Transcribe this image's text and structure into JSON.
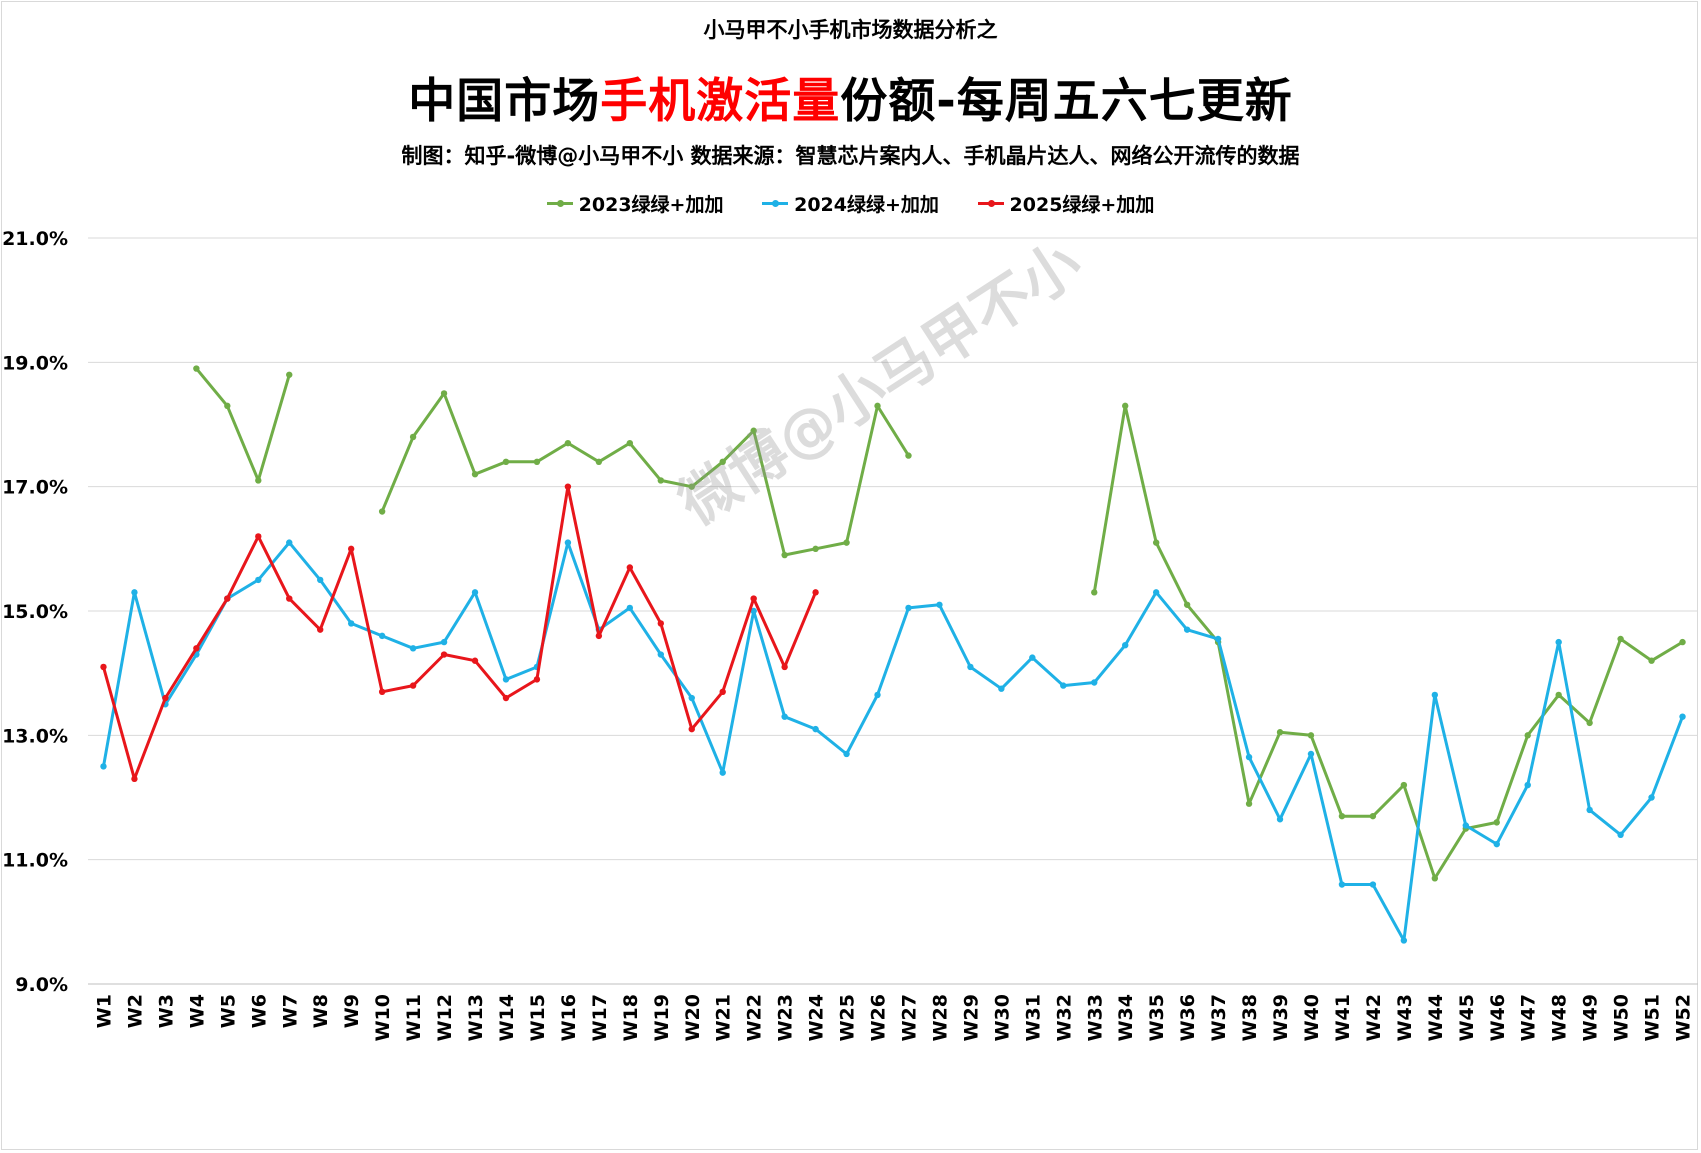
{
  "header": {
    "supertitle": "小马甲不小手机市场数据分析之",
    "title_part1": "中国市场",
    "title_highlight": "手机激活量",
    "title_part2": "份额-每周五六七更新",
    "subtitle": "制图：知乎-微博@小马甲不小    数据来源：智慧芯片案内人、手机晶片达人、网络公开流传的数据",
    "watermark": "微博@小马甲不小"
  },
  "colors": {
    "accent": "#ff0000",
    "s2023": "#70ad47",
    "s2024": "#1fb1e6",
    "s2025": "#e8161b",
    "grid": "#d9d9d9"
  },
  "chart_data": {
    "type": "line",
    "title": "中国市场手机激活量份额-每周五六七更新",
    "ylim": [
      9.0,
      21.0
    ],
    "yticks": [
      "21.0%",
      "19.0%",
      "17.0%",
      "15.0%",
      "13.0%",
      "11.0%",
      "9.0%"
    ],
    "ytick_values": [
      21,
      19,
      17,
      15,
      13,
      11,
      9
    ],
    "grid": true,
    "legend_position": "top",
    "categories": [
      "W1",
      "W2",
      "W3",
      "W4",
      "W5",
      "W6",
      "W7",
      "W8",
      "W9",
      "W10",
      "W11",
      "W12",
      "W13",
      "W14",
      "W15",
      "W16",
      "W17",
      "W18",
      "W19",
      "W20",
      "W21",
      "W22",
      "W23",
      "W24",
      "W25",
      "W26",
      "W27",
      "W28",
      "W29",
      "W30",
      "W31",
      "W32",
      "W33",
      "W34",
      "W35",
      "W36",
      "W37",
      "W38",
      "W39",
      "W40",
      "W41",
      "W42",
      "W43",
      "W44",
      "W45",
      "W46",
      "W47",
      "W48",
      "W49",
      "W50",
      "W51",
      "W52"
    ],
    "series": [
      {
        "name": "2023绿绿+加加",
        "color": "#70ad47",
        "values": [
          null,
          null,
          null,
          18.9,
          18.3,
          17.1,
          18.8,
          null,
          null,
          16.6,
          17.8,
          18.5,
          17.2,
          17.4,
          17.4,
          17.7,
          17.4,
          17.7,
          17.1,
          17.0,
          17.4,
          17.9,
          15.9,
          16.0,
          16.1,
          18.3,
          17.5,
          null,
          null,
          null,
          null,
          null,
          15.3,
          18.3,
          16.1,
          15.1,
          14.5,
          11.9,
          13.05,
          13.0,
          11.7,
          11.7,
          12.2,
          10.7,
          11.5,
          11.6,
          13.0,
          13.65,
          13.2,
          14.55,
          14.2,
          14.5
        ]
      },
      {
        "name": "2024绿绿+加加",
        "color": "#1fb1e6",
        "values": [
          12.5,
          15.3,
          13.5,
          14.3,
          15.2,
          15.5,
          16.1,
          15.5,
          14.8,
          14.6,
          14.4,
          14.5,
          15.3,
          13.9,
          14.1,
          16.1,
          14.7,
          15.05,
          14.3,
          13.6,
          12.4,
          15.0,
          13.3,
          13.1,
          12.7,
          13.65,
          15.05,
          15.1,
          14.1,
          13.75,
          14.25,
          13.8,
          13.85,
          14.45,
          15.3,
          14.7,
          14.55,
          12.65,
          11.65,
          12.7,
          10.6,
          10.6,
          9.7,
          13.65,
          11.55,
          11.25,
          12.2,
          14.5,
          11.8,
          11.4,
          12.0,
          13.3
        ]
      },
      {
        "name": "2025绿绿+加加",
        "color": "#e8161b",
        "values": [
          14.1,
          12.3,
          13.6,
          14.4,
          15.2,
          16.2,
          15.2,
          14.7,
          16.0,
          13.7,
          13.8,
          14.3,
          14.2,
          13.6,
          13.9,
          17.0,
          14.6,
          15.7,
          14.8,
          13.1,
          13.7,
          15.2,
          14.1,
          15.3,
          null,
          null,
          null,
          null,
          null,
          null,
          null,
          null,
          null,
          null,
          null,
          null,
          null,
          null,
          null,
          null,
          null,
          null,
          null,
          null,
          null,
          null,
          null,
          null,
          null,
          null,
          null,
          null
        ]
      }
    ]
  }
}
